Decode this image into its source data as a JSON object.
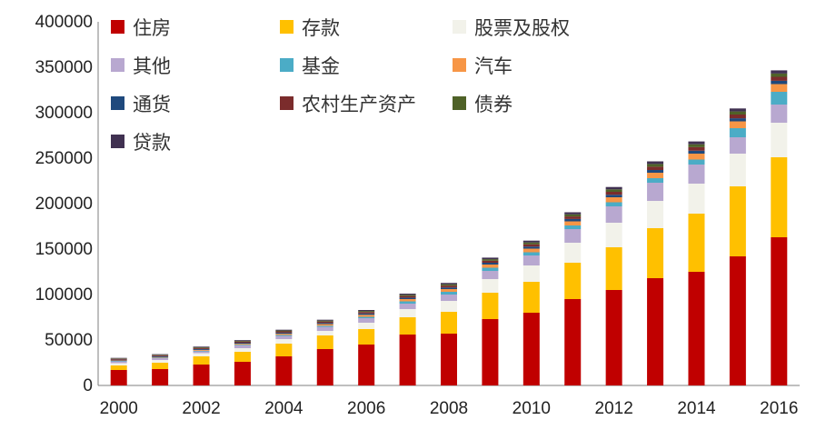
{
  "chart_data": {
    "type": "bar",
    "stacked": true,
    "title": "",
    "xlabel": "",
    "ylabel": "",
    "ylim": [
      0,
      400000
    ],
    "yticks": [
      0,
      50000,
      100000,
      150000,
      200000,
      250000,
      300000,
      350000,
      400000
    ],
    "xtick_labels": [
      "2000",
      "2002",
      "2004",
      "2006",
      "2008",
      "2010",
      "2012",
      "2014",
      "2016"
    ],
    "grid": false,
    "legend_position": "top-left",
    "categories": [
      "2000",
      "2001",
      "2002",
      "2003",
      "2004",
      "2005",
      "2006",
      "2007",
      "2008",
      "2009",
      "2010",
      "2011",
      "2012",
      "2013",
      "2014",
      "2015",
      "2016"
    ],
    "series": [
      {
        "name": "住房",
        "color": "#C00000",
        "values": [
          17000,
          18000,
          23000,
          26000,
          32000,
          40000,
          45000,
          56000,
          57000,
          73000,
          80000,
          95000,
          105000,
          118000,
          125000,
          142000,
          163000
        ]
      },
      {
        "name": "存款",
        "color": "#FFC000",
        "values": [
          5000,
          7000,
          9000,
          11000,
          14000,
          15000,
          17000,
          19000,
          24000,
          29000,
          34000,
          40000,
          47000,
          55000,
          64000,
          77000,
          88000
        ]
      },
      {
        "name": "股票及股权",
        "color": "#F2F2EA",
        "values": [
          2500,
          3000,
          3500,
          4000,
          5000,
          5000,
          7000,
          9000,
          12000,
          15000,
          18000,
          22000,
          27000,
          30000,
          33000,
          36000,
          38000
        ]
      },
      {
        "name": "其他",
        "color": "#B8A8D0",
        "values": [
          2000,
          2000,
          2000,
          3000,
          3500,
          4500,
          5000,
          6000,
          7000,
          9000,
          11000,
          15000,
          18000,
          20000,
          21000,
          18000,
          20000
        ]
      },
      {
        "name": "基金",
        "color": "#4BACC6",
        "values": [
          500,
          500,
          700,
          800,
          1000,
          1200,
          1500,
          2500,
          3000,
          3500,
          3500,
          4000,
          4500,
          5000,
          5500,
          10000,
          14000
        ]
      },
      {
        "name": "汽车",
        "color": "#F79646",
        "values": [
          500,
          700,
          900,
          1100,
          1400,
          1800,
          2200,
          2500,
          3000,
          3500,
          4000,
          4500,
          5500,
          6000,
          6500,
          7500,
          8500
        ]
      },
      {
        "name": "通货",
        "color": "#1F497D",
        "values": [
          800,
          900,
          1000,
          1100,
          1200,
          1300,
          1500,
          1600,
          1800,
          2000,
          2300,
          2600,
          2800,
          3000,
          3200,
          3400,
          3600
        ]
      },
      {
        "name": "农村生产资产",
        "color": "#7B2C2C",
        "values": [
          1000,
          1100,
          1200,
          1300,
          1400,
          1500,
          1600,
          1800,
          2000,
          2200,
          2500,
          2800,
          3200,
          3600,
          3900,
          4100,
          4400
        ]
      },
      {
        "name": "债券",
        "color": "#4F6228",
        "values": [
          500,
          600,
          700,
          800,
          900,
          1000,
          1100,
          1300,
          1500,
          1700,
          2000,
          2300,
          2700,
          3000,
          3200,
          3400,
          3600
        ]
      },
      {
        "name": "贷款",
        "color": "#403151",
        "values": [
          500,
          600,
          700,
          800,
          900,
          1000,
          1100,
          1300,
          1500,
          1700,
          2000,
          2300,
          2600,
          2900,
          3100,
          3300,
          3500
        ]
      }
    ]
  }
}
